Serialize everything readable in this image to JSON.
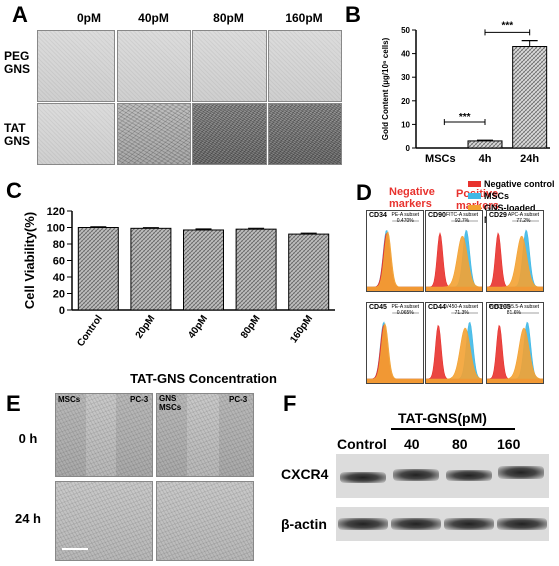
{
  "panel_a": {
    "letter": "A",
    "col_labels": [
      "0pM",
      "40pM",
      "80pM",
      "160pM"
    ],
    "row_labels": [
      [
        "PEG",
        "GNS"
      ],
      [
        "TAT",
        "GNS"
      ]
    ]
  },
  "panel_b": {
    "letter": "B",
    "chart_data": {
      "type": "bar",
      "categories": [
        "MSCs",
        "4h",
        "24h"
      ],
      "values": [
        0,
        3,
        43
      ],
      "errors": [
        0,
        0.3,
        2.5
      ],
      "ylabel": "Gold Content (µg/10⁶ cells)",
      "ylim": [
        0,
        50
      ],
      "yticks": [
        0,
        10,
        20,
        30,
        40,
        50
      ],
      "significance": [
        "***",
        "***"
      ]
    }
  },
  "panel_c": {
    "letter": "C",
    "chart_data": {
      "type": "bar",
      "categories": [
        "Control",
        "20pM",
        "40pM",
        "80pM",
        "160pM"
      ],
      "values": [
        100,
        99,
        97,
        98,
        92
      ],
      "errors": [
        0.8,
        0.8,
        1.2,
        1.0,
        1.0
      ],
      "xlabel": "TAT-GNS Concentration",
      "ylabel": "Cell Viability(%)",
      "ylim": [
        0,
        120
      ],
      "yticks": [
        0,
        20,
        40,
        60,
        80,
        100,
        120
      ]
    }
  },
  "panel_d": {
    "letter": "D",
    "negative_title": [
      "Negative",
      "markers"
    ],
    "positive_title": [
      "Positive",
      "markers"
    ],
    "legend": [
      {
        "label": "Negative control",
        "color": "#e8322e"
      },
      {
        "label": "MSCs",
        "color": "#3fb8e6"
      },
      {
        "label": "GNS-loaded MSCs",
        "color": "#f3a233"
      }
    ],
    "plots": [
      {
        "marker": "CD34",
        "gate": "PE-A subset",
        "pct": "0.470%"
      },
      {
        "marker": "CD90",
        "gate": "FITC-A subset",
        "pct": "92.7%"
      },
      {
        "marker": "CD29",
        "gate": "APC-A subset",
        "pct": "77.2%"
      },
      {
        "marker": "CD45",
        "gate": "PE-A subset",
        "pct": "0.065%"
      },
      {
        "marker": "CD44",
        "gate": "V450-A subset",
        "pct": "71.3%"
      },
      {
        "marker": "CD105",
        "gate": "PerCP-Cy5.5-A subset",
        "pct": "81.6%"
      }
    ]
  },
  "panel_e": {
    "letter": "E",
    "group1": [
      "MSCs",
      "PC-3"
    ],
    "group2_left": [
      "GNS",
      "MSCs"
    ],
    "group2_right": "PC-3",
    "rows": [
      "0 h",
      "24 h"
    ]
  },
  "panel_f": {
    "letter": "F",
    "treatment_label": "TAT-GNS(pM)",
    "lanes": [
      "Control",
      "40",
      "80",
      "160"
    ],
    "rows": [
      "CXCR4",
      "β-actin"
    ]
  },
  "colors": {
    "negative_title": "#e8322e",
    "positive_title": "#e8322e"
  }
}
